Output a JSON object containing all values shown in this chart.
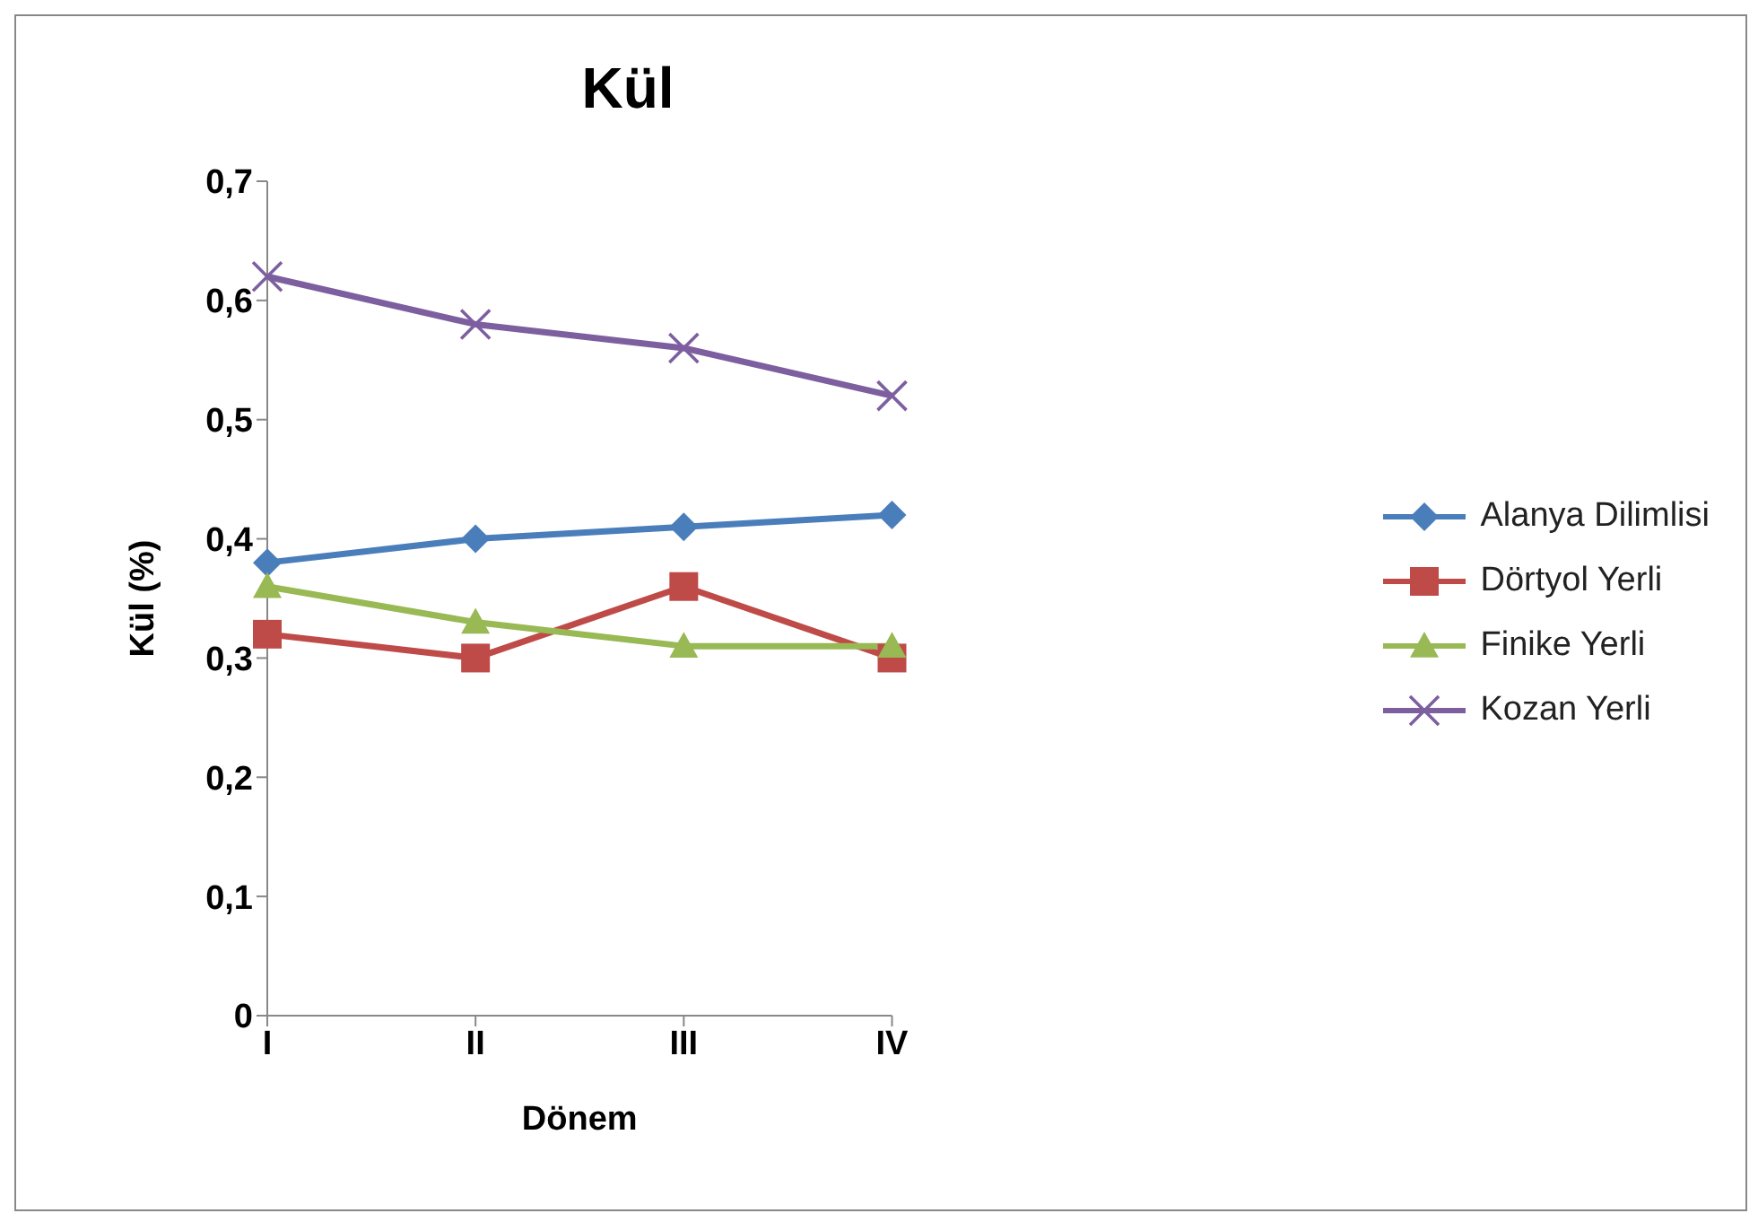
{
  "chart_data": {
    "type": "line",
    "title": "Kül",
    "xlabel": "Dönem",
    "ylabel": "Kül (%)",
    "categories": [
      "I",
      "II",
      "III",
      "IV"
    ],
    "ylim": [
      0,
      0.7
    ],
    "yticks": [
      {
        "value": 0,
        "label": "0"
      },
      {
        "value": 0.1,
        "label": "0,1"
      },
      {
        "value": 0.2,
        "label": "0,2"
      },
      {
        "value": 0.3,
        "label": "0,3"
      },
      {
        "value": 0.4,
        "label": "0,4"
      },
      {
        "value": 0.5,
        "label": "0,5"
      },
      {
        "value": 0.6,
        "label": "0,6"
      },
      {
        "value": 0.7,
        "label": "0,7"
      }
    ],
    "grid": false,
    "legend": "right",
    "line_style": "solid",
    "series": [
      {
        "name": "Alanya Dilimlisi",
        "color": "#4a7ebb",
        "marker": "diamond",
        "values": [
          0.38,
          0.4,
          0.41,
          0.42
        ]
      },
      {
        "name": "Dörtyol Yerli",
        "color": "#be4b48",
        "marker": "square",
        "values": [
          0.32,
          0.3,
          0.36,
          0.3
        ]
      },
      {
        "name": "Finike Yerli",
        "color": "#98b954",
        "marker": "triangle",
        "values": [
          0.36,
          0.33,
          0.31,
          0.31
        ]
      },
      {
        "name": "Kozan Yerli",
        "color": "#7d5fa0",
        "marker": "cross",
        "values": [
          0.62,
          0.58,
          0.56,
          0.52
        ]
      }
    ]
  }
}
